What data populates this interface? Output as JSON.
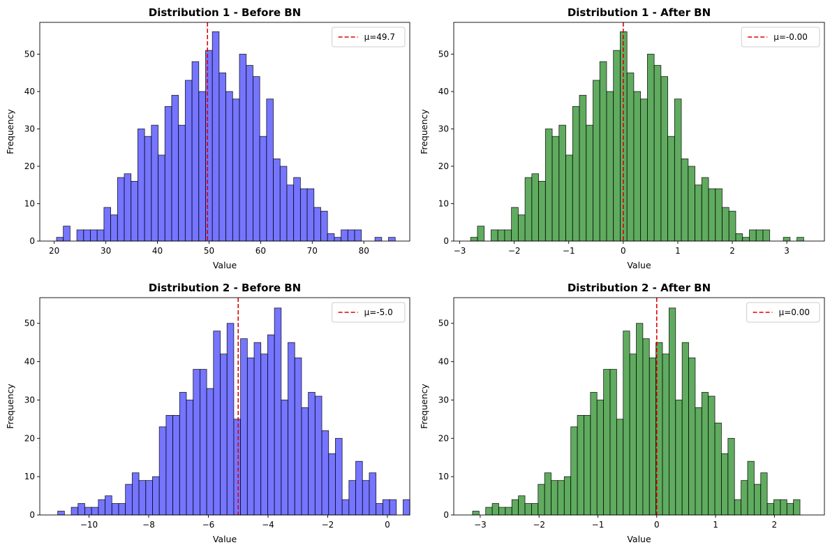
{
  "chart_data": [
    {
      "type": "bar",
      "title": "Distribution 1 - Before BN",
      "xlabel": "Value",
      "ylabel": "Frequency",
      "bar_color": "#4040ff",
      "mean_color": "#dd0000",
      "legend": "μ=49.7",
      "legend_position": "top-right",
      "mean": 49.7,
      "xlim": [
        17.2,
        88.9
      ],
      "ylim": [
        0,
        58.5
      ],
      "xticks": [
        20,
        30,
        40,
        50,
        60,
        70,
        80
      ],
      "yticks": [
        0,
        10,
        20,
        30,
        40,
        50
      ],
      "bins_start": 20.44,
      "bin_width": 1.313,
      "counts": [
        1,
        4,
        0,
        3,
        3,
        3,
        3,
        9,
        7,
        17,
        18,
        16,
        30,
        28,
        31,
        23,
        36,
        39,
        31,
        43,
        48,
        40,
        51,
        56,
        45,
        40,
        38,
        50,
        47,
        44,
        28,
        38,
        22,
        20,
        15,
        17,
        14,
        14,
        9,
        8,
        2,
        1,
        3,
        3,
        3,
        0,
        0,
        1,
        0,
        1
      ]
    },
    {
      "type": "bar",
      "title": "Distribution 1 - After BN",
      "xlabel": "Value",
      "ylabel": "Frequency",
      "bar_color": "#228b22",
      "mean_color": "#dd0000",
      "legend": "μ=-0.00",
      "legend_position": "top-right",
      "mean": 0,
      "xlim": [
        -3.11,
        3.69
      ],
      "ylim": [
        0,
        58.5
      ],
      "xticks": [
        -3,
        -2,
        -1,
        0,
        1,
        2,
        3
      ],
      "yticks": [
        0,
        10,
        20,
        30,
        40,
        50
      ],
      "bins_start": -2.8,
      "bin_width": 0.1247,
      "counts": [
        1,
        4,
        0,
        3,
        3,
        3,
        9,
        7,
        17,
        18,
        16,
        30,
        28,
        31,
        23,
        36,
        39,
        31,
        43,
        48,
        40,
        51,
        56,
        45,
        40,
        38,
        50,
        47,
        44,
        28,
        38,
        22,
        20,
        15,
        17,
        14,
        14,
        9,
        8,
        2,
        1,
        3,
        3,
        3,
        0,
        0,
        1,
        0,
        1
      ]
    },
    {
      "type": "bar",
      "title": "Distribution 2 - Before BN",
      "xlabel": "Value",
      "ylabel": "Frequency",
      "bar_color": "#4040ff",
      "mean_color": "#dd0000",
      "legend": "μ=-5.0",
      "legend_position": "top-right",
      "mean": -5.0,
      "xlim": [
        -11.65,
        0.75
      ],
      "ylim": [
        0,
        56.7
      ],
      "xticks": [
        -10,
        -8,
        -6,
        -4,
        -2,
        0
      ],
      "yticks": [
        0,
        10,
        20,
        30,
        40,
        50
      ],
      "bins_start": -11.05,
      "bin_width": 0.227,
      "counts": [
        1,
        0,
        2,
        3,
        2,
        2,
        4,
        5,
        3,
        3,
        8,
        11,
        9,
        9,
        10,
        23,
        26,
        26,
        32,
        30,
        38,
        38,
        33,
        48,
        42,
        50,
        25,
        46,
        41,
        45,
        42,
        47,
        54,
        30,
        45,
        41,
        28,
        32,
        31,
        22,
        16,
        20,
        4,
        9,
        14,
        9,
        11,
        3,
        4,
        4,
        0,
        4
      ]
    },
    {
      "type": "bar",
      "title": "Distribution 2 - After BN",
      "xlabel": "Value",
      "ylabel": "Frequency",
      "bar_color": "#228b22",
      "mean_color": "#dd0000",
      "legend": "μ=0.00",
      "legend_position": "top-right",
      "mean": 0,
      "xlim": [
        -3.45,
        2.85
      ],
      "ylim": [
        0,
        56.7
      ],
      "xticks": [
        -3,
        -2,
        -1,
        0,
        1,
        2
      ],
      "yticks": [
        0,
        10,
        20,
        30,
        40,
        50
      ],
      "bins_start": -3.13,
      "bin_width": 0.1113,
      "counts": [
        1,
        0,
        2,
        3,
        2,
        2,
        4,
        5,
        3,
        3,
        8,
        11,
        9,
        9,
        10,
        23,
        26,
        26,
        32,
        30,
        38,
        38,
        25,
        48,
        42,
        50,
        46,
        41,
        45,
        42,
        54,
        30,
        45,
        41,
        28,
        32,
        31,
        24,
        16,
        20,
        4,
        9,
        14,
        8,
        11,
        3,
        4,
        4,
        3,
        4
      ]
    }
  ]
}
